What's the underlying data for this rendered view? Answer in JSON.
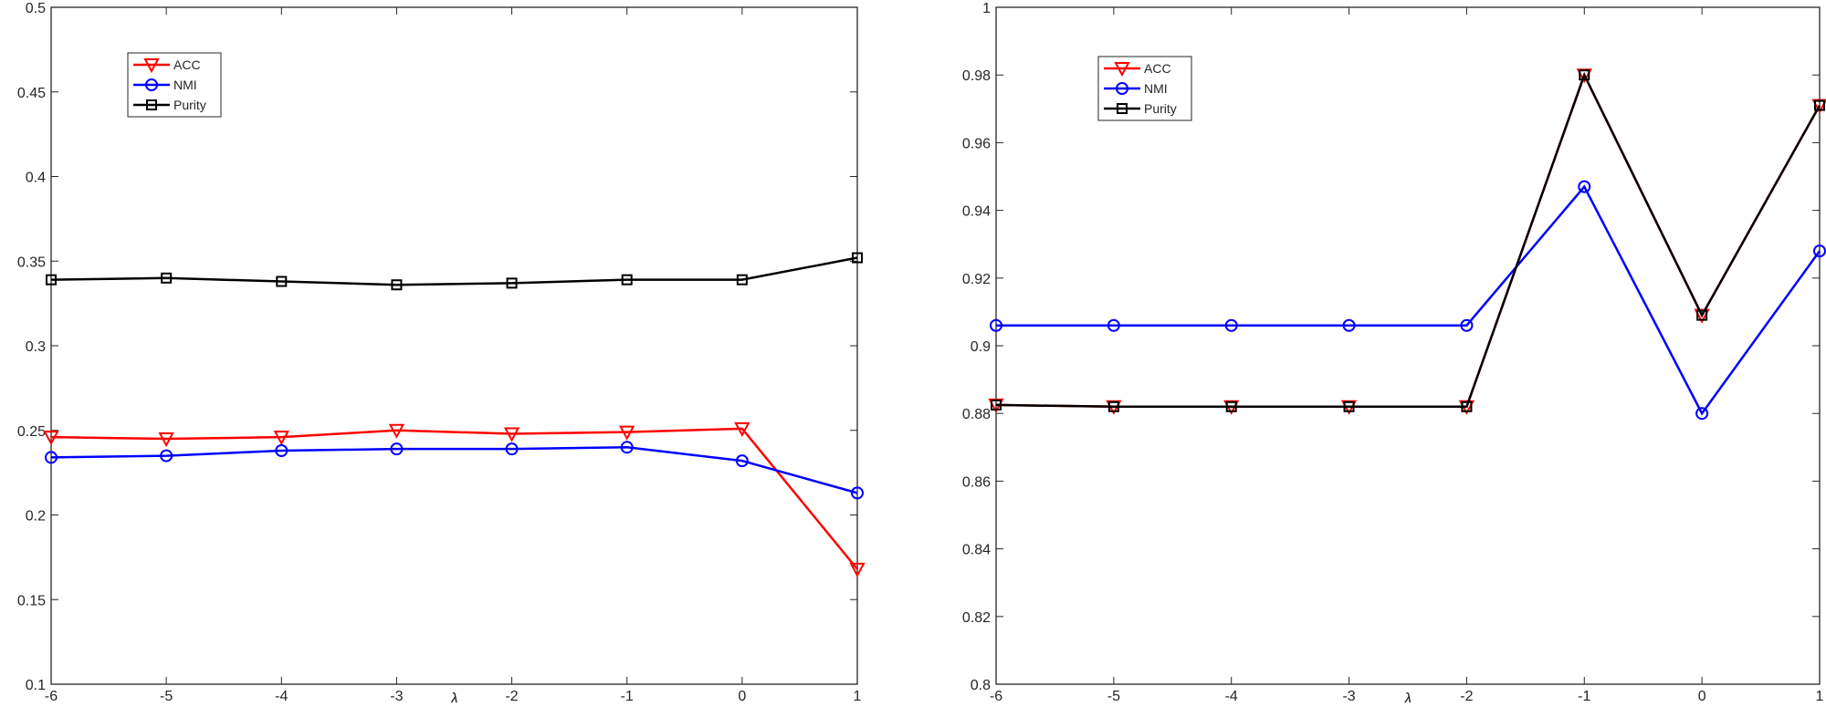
{
  "chart_data": [
    {
      "type": "line",
      "title": "",
      "xlabel": "λ",
      "ylabel": "",
      "x": [
        -6,
        -5,
        -4,
        -3,
        -2,
        -1,
        0,
        1
      ],
      "xlim": [
        -6,
        1
      ],
      "ylim": [
        0.1,
        0.5
      ],
      "xticks": [
        "-6",
        "-5",
        "-4",
        "-3",
        "-2",
        "-1",
        "0",
        "1"
      ],
      "yticks": [
        "0.1",
        "0.15",
        "0.2",
        "0.25",
        "0.3",
        "0.35",
        "0.4",
        "0.45",
        "0.5"
      ],
      "grid": false,
      "legend_placement": "top-left",
      "series": [
        {
          "name": "ACC",
          "color": "#ff0000",
          "marker": "triangle-down",
          "values": [
            0.246,
            0.245,
            0.246,
            0.25,
            0.248,
            0.249,
            0.251,
            0.168
          ]
        },
        {
          "name": "NMI",
          "color": "#0000ff",
          "marker": "circle",
          "values": [
            0.234,
            0.235,
            0.238,
            0.239,
            0.239,
            0.24,
            0.232,
            0.213
          ]
        },
        {
          "name": "Purity",
          "color": "#000000",
          "marker": "square",
          "values": [
            0.339,
            0.34,
            0.338,
            0.336,
            0.337,
            0.339,
            0.339,
            0.352
          ]
        }
      ]
    },
    {
      "type": "line",
      "title": "",
      "xlabel": "λ",
      "ylabel": "",
      "x": [
        -6,
        -5,
        -4,
        -3,
        -2,
        -1,
        0,
        1
      ],
      "xlim": [
        -6,
        1
      ],
      "ylim": [
        0.8,
        1.0
      ],
      "xticks": [
        "-6",
        "-5",
        "-4",
        "-3",
        "-2",
        "-1",
        "0",
        "1"
      ],
      "yticks": [
        "0.8",
        "0.82",
        "0.84",
        "0.86",
        "0.88",
        "0.9",
        "0.92",
        "0.94",
        "0.96",
        "0.98",
        "1"
      ],
      "grid": false,
      "legend_placement": "top-left",
      "series": [
        {
          "name": "ACC",
          "color": "#ff0000",
          "marker": "triangle-down",
          "values": [
            0.8825,
            0.882,
            0.882,
            0.882,
            0.882,
            0.98,
            0.909,
            0.971
          ]
        },
        {
          "name": "NMI",
          "color": "#0000ff",
          "marker": "circle",
          "values": [
            0.906,
            0.906,
            0.906,
            0.906,
            0.906,
            0.947,
            0.88,
            0.928
          ]
        },
        {
          "name": "Purity",
          "color": "#000000",
          "marker": "square",
          "values": [
            0.8825,
            0.882,
            0.882,
            0.882,
            0.882,
            0.98,
            0.909,
            0.971
          ]
        }
      ]
    }
  ]
}
